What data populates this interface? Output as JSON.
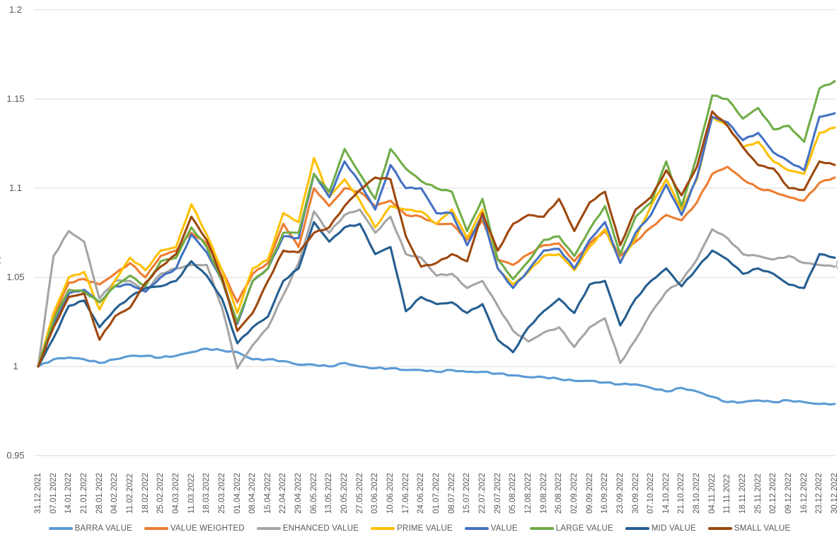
{
  "page": {
    "background": "#FFFFFF"
  },
  "stray_glyphs": {
    "left_edge": "O",
    "right_edge": "("
  },
  "chart_data": {
    "type": "line",
    "title": "",
    "legend_position": "bottom",
    "grid": true,
    "gridline_color": "#D9D9D9",
    "axis_label_color": "#595959",
    "ylim": [
      0.95,
      1.2
    ],
    "y_ticks": [
      {
        "label": "1.2",
        "value": 1.2
      },
      {
        "label": "1.15",
        "value": 1.15
      },
      {
        "label": "1.1",
        "value": 1.1
      },
      {
        "label": "1.05",
        "value": 1.05
      },
      {
        "label": "1",
        "value": 1.0
      },
      {
        "label": "0.95",
        "value": 0.95
      }
    ],
    "x": [
      "31.12.2021",
      "07.01.2022",
      "14.01.2022",
      "21.01.2022",
      "28.01.2022",
      "04.02.2022",
      "11.02.2022",
      "18.02.2022",
      "25.02.2022",
      "04.03.2022",
      "11.03.2022",
      "18.03.2022",
      "25.03.2022",
      "01.04.2022",
      "08.04.2022",
      "15.04.2022",
      "22.04.2022",
      "29.04.2022",
      "06.05.2022",
      "13.05.2022",
      "20.05.2022",
      "27.05.2022",
      "03.06.2022",
      "10.06.2022",
      "17.06.2022",
      "24.06.2022",
      "01.07.2022",
      "08.07.2022",
      "15.07.2022",
      "22.07.2022",
      "29.07.2022",
      "05.08.2022",
      "12.08.2022",
      "19.08.2022",
      "26.08.2022",
      "02.09.2022",
      "09.09.2022",
      "16.09.2022",
      "23.09.2022",
      "30.09.2022",
      "07.10.2022",
      "14.10.2022",
      "21.10.2022",
      "28.10.2022",
      "04.11.2022",
      "11.11.2022",
      "18.11.2022",
      "25.11.2022",
      "02.12.2022",
      "09.12.2022",
      "16.12.2022",
      "23.12.2022",
      "30.12.2022"
    ],
    "series": [
      {
        "name": "BARRA VALUE",
        "color": "#5B9BD5",
        "values": [
          1.0,
          1.004,
          1.005,
          1.004,
          1.002,
          1.004,
          1.006,
          1.006,
          1.005,
          1.006,
          1.008,
          1.01,
          1.009,
          1.008,
          1.004,
          1.004,
          1.003,
          1.001,
          1.001,
          1.0,
          1.002,
          1.0,
          0.999,
          0.999,
          0.998,
          0.998,
          0.997,
          0.998,
          0.997,
          0.997,
          0.996,
          0.995,
          0.994,
          0.994,
          0.993,
          0.992,
          0.992,
          0.991,
          0.99,
          0.99,
          0.988,
          0.986,
          0.988,
          0.986,
          0.983,
          0.98,
          0.98,
          0.981,
          0.98,
          0.981,
          0.98,
          0.979,
          0.979
        ]
      },
      {
        "name": "VALUE WEIGHTED",
        "color": "#ED7D31",
        "values": [
          1.0,
          1.028,
          1.047,
          1.049,
          1.046,
          1.052,
          1.058,
          1.05,
          1.062,
          1.065,
          1.075,
          1.069,
          1.054,
          1.036,
          1.052,
          1.058,
          1.08,
          1.067,
          1.1,
          1.09,
          1.1,
          1.098,
          1.09,
          1.093,
          1.085,
          1.084,
          1.08,
          1.08,
          1.071,
          1.082,
          1.06,
          1.057,
          1.063,
          1.068,
          1.069,
          1.059,
          1.069,
          1.076,
          1.062,
          1.07,
          1.078,
          1.085,
          1.082,
          1.092,
          1.108,
          1.112,
          1.105,
          1.1,
          1.098,
          1.095,
          1.093,
          1.103,
          1.106
        ]
      },
      {
        "name": "ENHANCED VALUE",
        "color": "#A5A5A5",
        "values": [
          1.0,
          1.062,
          1.076,
          1.07,
          1.038,
          1.048,
          1.048,
          1.042,
          1.052,
          1.055,
          1.057,
          1.057,
          1.033,
          0.999,
          1.012,
          1.022,
          1.04,
          1.058,
          1.087,
          1.075,
          1.085,
          1.088,
          1.075,
          1.084,
          1.063,
          1.061,
          1.051,
          1.052,
          1.044,
          1.048,
          1.034,
          1.02,
          1.014,
          1.019,
          1.022,
          1.011,
          1.022,
          1.027,
          1.002,
          1.015,
          1.03,
          1.042,
          1.048,
          1.06,
          1.077,
          1.072,
          1.063,
          1.062,
          1.06,
          1.062,
          1.058,
          1.057,
          1.056
        ]
      },
      {
        "name": "PRIME VALUE",
        "color": "#FFC000",
        "values": [
          1.0,
          1.03,
          1.05,
          1.053,
          1.032,
          1.048,
          1.061,
          1.054,
          1.065,
          1.067,
          1.091,
          1.074,
          1.054,
          1.03,
          1.055,
          1.06,
          1.086,
          1.081,
          1.117,
          1.095,
          1.105,
          1.093,
          1.078,
          1.09,
          1.088,
          1.087,
          1.08,
          1.088,
          1.072,
          1.088,
          1.055,
          1.046,
          1.053,
          1.062,
          1.063,
          1.054,
          1.067,
          1.077,
          1.059,
          1.072,
          1.09,
          1.105,
          1.088,
          1.105,
          1.14,
          1.135,
          1.123,
          1.126,
          1.115,
          1.11,
          1.108,
          1.131,
          1.134
        ]
      },
      {
        "name": "VALUE",
        "color": "#4472C4",
        "values": [
          1.0,
          1.024,
          1.041,
          1.043,
          1.036,
          1.045,
          1.046,
          1.042,
          1.05,
          1.055,
          1.074,
          1.064,
          1.048,
          1.024,
          1.048,
          1.055,
          1.073,
          1.072,
          1.108,
          1.095,
          1.115,
          1.103,
          1.088,
          1.113,
          1.1,
          1.1,
          1.086,
          1.086,
          1.068,
          1.085,
          1.055,
          1.044,
          1.054,
          1.065,
          1.066,
          1.055,
          1.071,
          1.081,
          1.058,
          1.075,
          1.085,
          1.102,
          1.085,
          1.106,
          1.14,
          1.137,
          1.127,
          1.131,
          1.12,
          1.115,
          1.11,
          1.14,
          1.142
        ]
      },
      {
        "name": "LARGE VALUE",
        "color": "#70AD47",
        "values": [
          1.0,
          1.026,
          1.043,
          1.042,
          1.036,
          1.045,
          1.051,
          1.045,
          1.059,
          1.061,
          1.078,
          1.067,
          1.048,
          1.025,
          1.048,
          1.055,
          1.075,
          1.075,
          1.108,
          1.098,
          1.122,
          1.108,
          1.094,
          1.122,
          1.111,
          1.104,
          1.1,
          1.098,
          1.076,
          1.094,
          1.06,
          1.049,
          1.059,
          1.071,
          1.073,
          1.062,
          1.077,
          1.09,
          1.063,
          1.084,
          1.092,
          1.115,
          1.09,
          1.118,
          1.152,
          1.15,
          1.139,
          1.145,
          1.133,
          1.135,
          1.126,
          1.156,
          1.16
        ]
      },
      {
        "name": "MID VALUE",
        "color": "#255E91",
        "values": [
          1.0,
          1.016,
          1.034,
          1.037,
          1.022,
          1.032,
          1.039,
          1.044,
          1.045,
          1.048,
          1.059,
          1.051,
          1.038,
          1.013,
          1.022,
          1.028,
          1.048,
          1.055,
          1.081,
          1.07,
          1.078,
          1.08,
          1.063,
          1.067,
          1.031,
          1.039,
          1.035,
          1.036,
          1.03,
          1.035,
          1.015,
          1.008,
          1.022,
          1.031,
          1.038,
          1.03,
          1.046,
          1.048,
          1.023,
          1.038,
          1.048,
          1.055,
          1.045,
          1.055,
          1.065,
          1.06,
          1.052,
          1.055,
          1.052,
          1.046,
          1.044,
          1.063,
          1.061
        ]
      },
      {
        "name": "SMALL VALUE",
        "color": "#9E480E",
        "values": [
          1.0,
          1.022,
          1.039,
          1.041,
          1.015,
          1.028,
          1.033,
          1.047,
          1.056,
          1.063,
          1.084,
          1.071,
          1.05,
          1.02,
          1.03,
          1.048,
          1.065,
          1.064,
          1.075,
          1.078,
          1.09,
          1.099,
          1.106,
          1.105,
          1.073,
          1.056,
          1.058,
          1.063,
          1.059,
          1.086,
          1.065,
          1.08,
          1.085,
          1.084,
          1.094,
          1.076,
          1.092,
          1.098,
          1.068,
          1.088,
          1.095,
          1.11,
          1.096,
          1.112,
          1.143,
          1.135,
          1.123,
          1.113,
          1.111,
          1.1,
          1.099,
          1.115,
          1.113
        ]
      }
    ]
  }
}
